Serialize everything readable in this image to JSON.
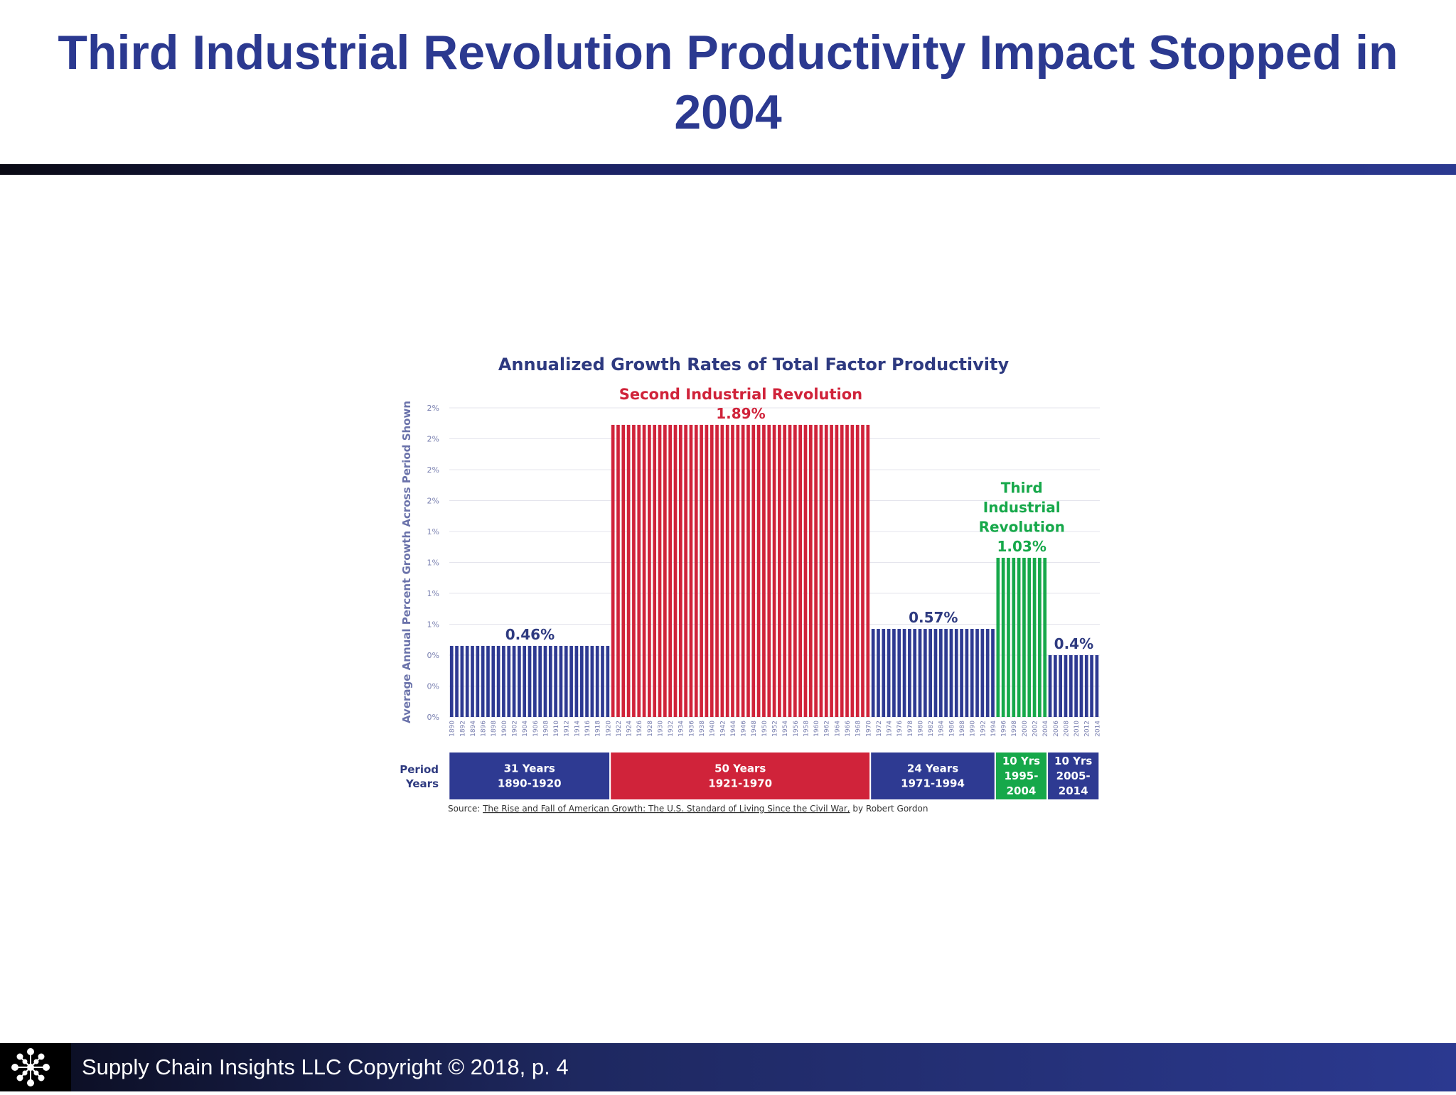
{
  "slide": {
    "title": "Third Industrial Revolution Productivity Impact Stopped in 2004",
    "footer_text": "Supply Chain Insights LLC Copyright © 2018, p. 4",
    "logo_icon": "network-asterisk-icon"
  },
  "colors": {
    "title": "#2b3990",
    "blue": "#2e3a92",
    "red": "#d0233a",
    "green": "#16a84a"
  },
  "chart_data": {
    "type": "bar",
    "title": "Annualized Growth Rates of Total Factor Productivity",
    "ylabel": "Average Annual Percent Growth Across Period Shown",
    "y_tick_labels": [
      "0%",
      "0%",
      "0%",
      "1%",
      "1%",
      "1%",
      "1%",
      "2%",
      "2%",
      "2%",
      "2%"
    ],
    "ylim": [
      0,
      2.0
    ],
    "x_tick_labels": [
      "1890",
      "1892",
      "1894",
      "1896",
      "1898",
      "1900",
      "1902",
      "1904",
      "1906",
      "1908",
      "1910",
      "1912",
      "1914",
      "1916",
      "1918",
      "1920",
      "1922",
      "1924",
      "1926",
      "1928",
      "1930",
      "1932",
      "1934",
      "1936",
      "1938",
      "1940",
      "1942",
      "1944",
      "1946",
      "1948",
      "1950",
      "1952",
      "1954",
      "1956",
      "1958",
      "1960",
      "1962",
      "1964",
      "1966",
      "1968",
      "1970",
      "1972",
      "1974",
      "1976",
      "1978",
      "1980",
      "1982",
      "1984",
      "1986",
      "1988",
      "1990",
      "1992",
      "1994",
      "1996",
      "1998",
      "2000",
      "2002",
      "2004",
      "2006",
      "2008",
      "2010",
      "2012",
      "2014"
    ],
    "periods": [
      {
        "start": 1890,
        "end": 1920,
        "value": 0.46,
        "label": "0.46%",
        "color": "blue",
        "box_line1": "31 Years",
        "box_line2": "1890-1920"
      },
      {
        "start": 1921,
        "end": 1970,
        "value": 1.89,
        "label": "1.89%",
        "color": "red",
        "annotation": "Second Industrial Revolution",
        "box_line1": "50 Years",
        "box_line2": "1921-1970"
      },
      {
        "start": 1971,
        "end": 1994,
        "value": 0.57,
        "label": "0.57%",
        "color": "blue",
        "box_line1": "24 Years",
        "box_line2": "1971-1994"
      },
      {
        "start": 1995,
        "end": 2004,
        "value": 1.03,
        "label": "1.03%",
        "color": "green",
        "annotation_lines": [
          "Third",
          "Industrial",
          "Revolution"
        ],
        "box_line1": "10 Yrs",
        "box_line2": "1995-",
        "box_line3": "2004"
      },
      {
        "start": 2005,
        "end": 2014,
        "value": 0.4,
        "label": "0.4%",
        "color": "blue",
        "box_line1": "10 Yrs",
        "box_line2": "2005-",
        "box_line3": "2014"
      }
    ],
    "period_row_label_line1": "Period",
    "period_row_label_line2": "Years",
    "source_prefix": "Source: ",
    "source_title": "The Rise and Fall of American Growth: The U.S. Standard of Living Since the Civil War,",
    "source_suffix": " by Robert Gordon"
  }
}
